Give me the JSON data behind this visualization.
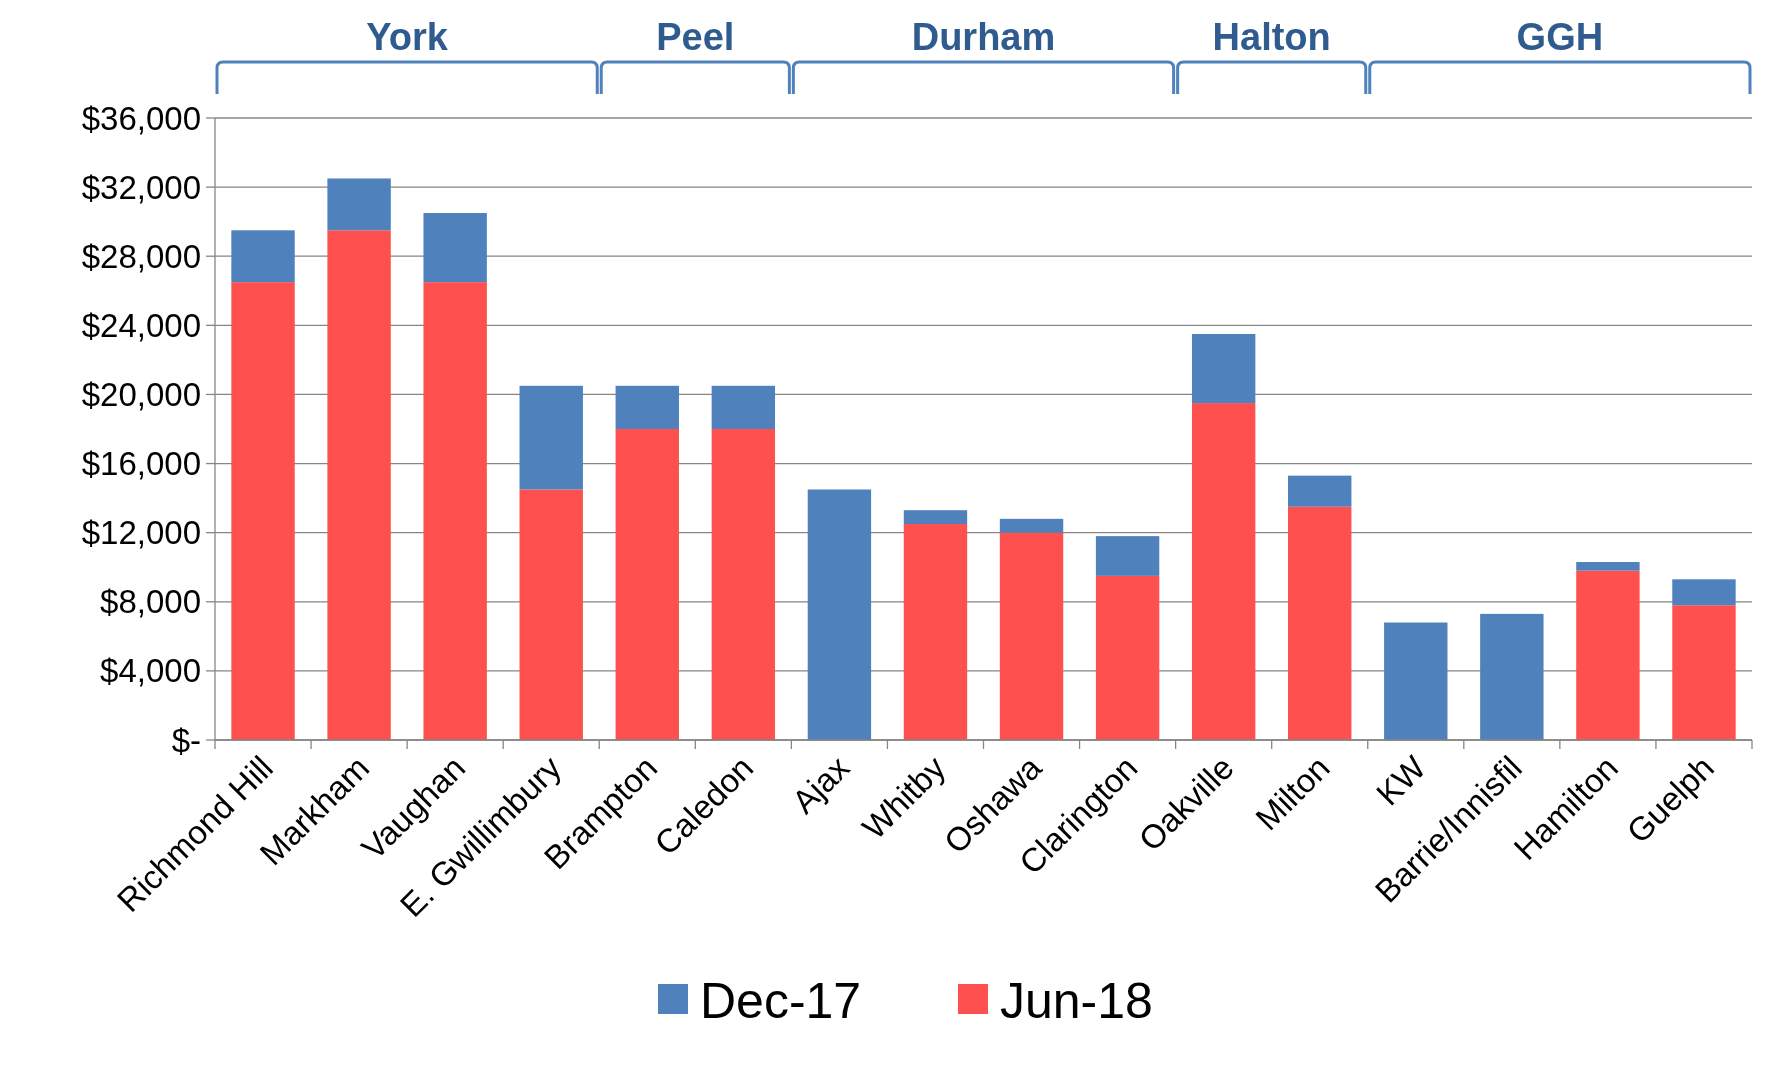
{
  "chart_data": {
    "type": "bar",
    "stacked": true,
    "categories": [
      "Richmond Hill",
      "Markham",
      "Vaughan",
      "E. Gwillimbury",
      "Brampton",
      "Caledon",
      "Ajax",
      "Whitby",
      "Oshawa",
      "Clarington",
      "Oakville",
      "Milton",
      "KW",
      "Barrie/Innisfil",
      "Hamilton",
      "Guelph"
    ],
    "series": [
      {
        "name": "Jun-18",
        "color": "#ff5050",
        "values": [
          26500,
          29500,
          26500,
          14500,
          18000,
          18000,
          null,
          12500,
          12000,
          9500,
          19500,
          13500,
          null,
          null,
          9800,
          7800
        ]
      },
      {
        "name": "Dec-17",
        "color": "#4f81bd",
        "values": [
          3000,
          3000,
          4000,
          6000,
          2500,
          2500,
          14500,
          800,
          800,
          2300,
          4000,
          1800,
          6800,
          7300,
          500,
          1500
        ]
      }
    ],
    "ylim": [
      0,
      36000
    ],
    "yticks": [
      {
        "value": 0,
        "label": "$-"
      },
      {
        "value": 4000,
        "label": "$4,000"
      },
      {
        "value": 8000,
        "label": "$8,000"
      },
      {
        "value": 12000,
        "label": "$12,000"
      },
      {
        "value": 16000,
        "label": "$16,000"
      },
      {
        "value": 20000,
        "label": "$20,000"
      },
      {
        "value": 24000,
        "label": "$24,000"
      },
      {
        "value": 28000,
        "label": "$28,000"
      },
      {
        "value": 32000,
        "label": "$32,000"
      },
      {
        "value": 36000,
        "label": "$36,000"
      }
    ],
    "grid": "y",
    "legend": "bottom",
    "annotations": [
      "York",
      "Peel",
      "Durham",
      "Halton",
      "GGH"
    ]
  }
}
